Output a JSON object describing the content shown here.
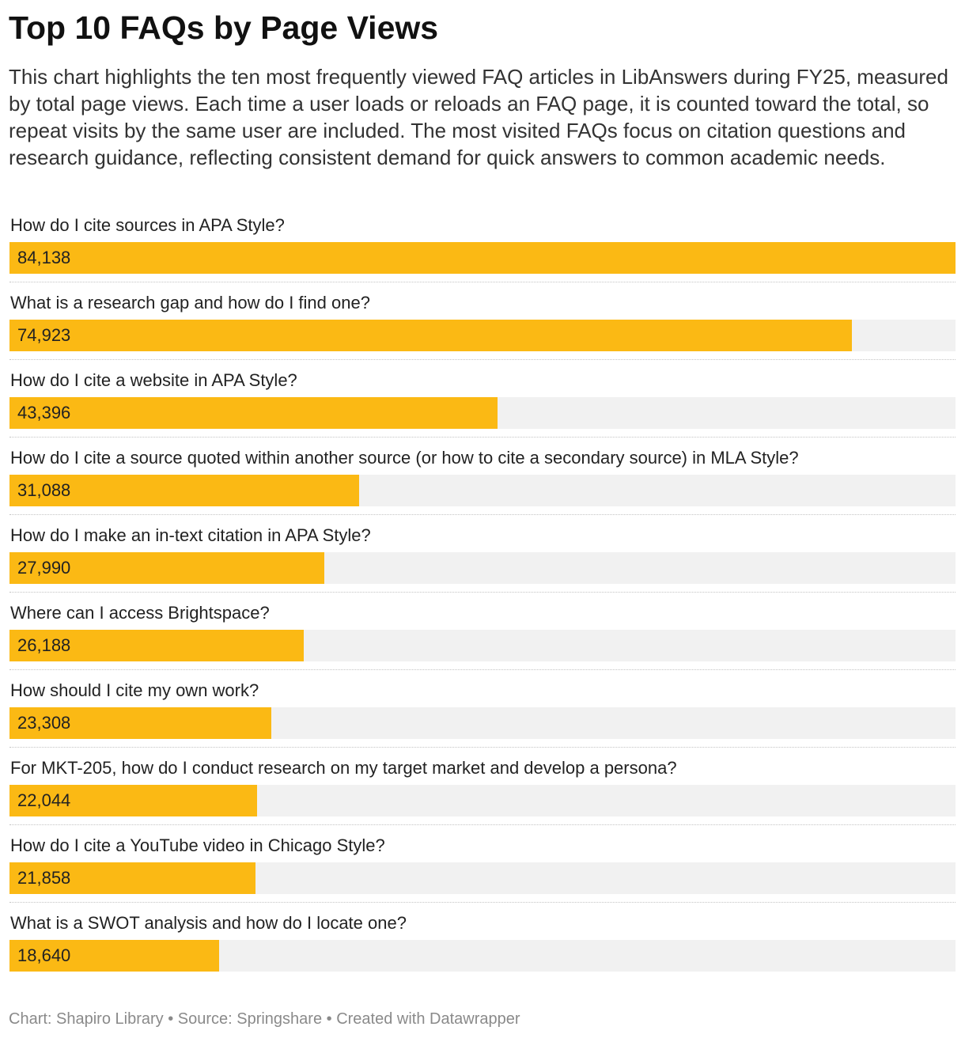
{
  "chart_data": {
    "type": "bar",
    "orientation": "horizontal",
    "title": "Top 10 FAQs by Page Views",
    "description": "This chart highlights the ten most frequently viewed FAQ articles in LibAnswers during FY25, measured by total page views. Each time a user loads or reloads an FAQ page, it is counted toward the total, so repeat visits by the same user are included. The most visited FAQs focus on citation questions and research guidance, reflecting consistent demand for quick answers to common academic needs.",
    "categories": [
      "How do I cite sources in APA Style?",
      "What is a research gap and how do I find one?",
      "How do I cite a website in APA Style?",
      "How do I cite a source quoted within another source (or how to cite a secondary source) in MLA Style?",
      "How do I make an in-text citation in APA Style?",
      "Where can I access Brightspace?",
      "How should I cite my own work?",
      "For MKT-205, how do I conduct research on my target market and develop a persona?",
      "How do I cite a YouTube video in Chicago Style?",
      "What is a SWOT analysis and how do I locate one?"
    ],
    "values": [
      84138,
      74923,
      43396,
      31088,
      27990,
      26188,
      23308,
      22044,
      21858,
      18640
    ],
    "value_labels": [
      "84,138",
      "74,923",
      "43,396",
      "31,088",
      "27,990",
      "26,188",
      "23,308",
      "22,044",
      "21,858",
      "18,640"
    ],
    "xlim": [
      0,
      84138
    ],
    "bar_color": "#fbb914",
    "track_color": "#f1f1f1",
    "grid": false,
    "footer": "Chart: Shapiro Library • Source: Springshare • Created with Datawrapper"
  }
}
